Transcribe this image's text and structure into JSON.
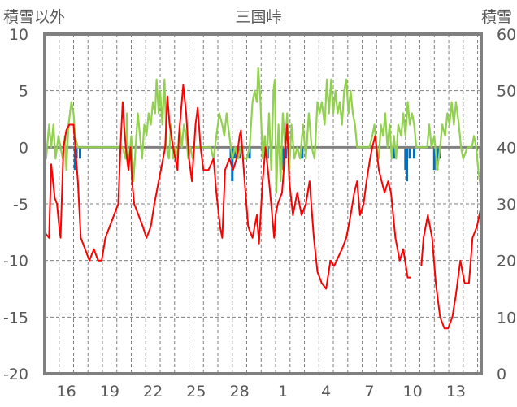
{
  "chart_data": {
    "type": "line",
    "title": "三国峠",
    "ylabel_left": "積雪以外",
    "ylabel_right": "積雪",
    "ylim_left": [
      -20,
      10
    ],
    "ylim_right": [
      0,
      60
    ],
    "yticks_left": [
      "10",
      "5",
      "0",
      "-5",
      "-10",
      "-15",
      "-20"
    ],
    "yticks_right": [
      "60",
      "50",
      "40",
      "30",
      "20",
      "10",
      "0"
    ],
    "xlim_days": [
      0,
      30.25
    ],
    "xtick_labels": [
      {
        "day": 1.5,
        "label": "16"
      },
      {
        "day": 4.5,
        "label": "19"
      },
      {
        "day": 7.5,
        "label": "22"
      },
      {
        "day": 10.5,
        "label": "25"
      },
      {
        "day": 13.5,
        "label": "28"
      },
      {
        "day": 16.5,
        "label": "1"
      },
      {
        "day": 19.5,
        "label": "4"
      },
      {
        "day": 22.5,
        "label": "7"
      },
      {
        "day": 25.5,
        "label": "10"
      },
      {
        "day": 28.5,
        "label": "13"
      }
    ],
    "colors": {
      "red": "#ff0000",
      "green": "#92d050",
      "blue": "#0070c0",
      "axis": "#808080"
    },
    "series": [
      {
        "name": "red",
        "axis": "left",
        "color": "#ff0000",
        "points": [
          [
            0,
            -7.5
          ],
          [
            0.3,
            -8
          ],
          [
            0.45,
            -1.5
          ],
          [
            0.7,
            -4.5
          ],
          [
            0.85,
            -5
          ],
          [
            1.0,
            -7
          ],
          [
            1.1,
            -8
          ],
          [
            1.3,
            0
          ],
          [
            1.5,
            1.5
          ],
          [
            1.7,
            2
          ],
          [
            2.0,
            2
          ],
          [
            2.3,
            -3
          ],
          [
            2.5,
            -8
          ],
          [
            2.8,
            -9
          ],
          [
            3.1,
            -10
          ],
          [
            3.4,
            -9
          ],
          [
            3.7,
            -10
          ],
          [
            3.95,
            -10
          ],
          [
            4.2,
            -8
          ],
          [
            4.5,
            -7
          ],
          [
            4.8,
            -6
          ],
          [
            5.1,
            -5
          ],
          [
            5.25,
            0
          ],
          [
            5.4,
            4
          ],
          [
            5.55,
            1
          ],
          [
            5.7,
            -1
          ],
          [
            5.8,
            -2
          ],
          [
            5.95,
            0
          ],
          [
            6.05,
            -3
          ],
          [
            6.2,
            -5
          ],
          [
            6.5,
            -6
          ],
          [
            6.8,
            -7
          ],
          [
            7.05,
            -8
          ],
          [
            7.35,
            -7
          ],
          [
            7.6,
            -5
          ],
          [
            7.9,
            -3
          ],
          [
            8.2,
            -1
          ],
          [
            8.35,
            0
          ],
          [
            8.5,
            4.5
          ],
          [
            8.65,
            2
          ],
          [
            8.9,
            0
          ],
          [
            9.2,
            -2
          ],
          [
            9.3,
            1
          ],
          [
            9.6,
            5.5
          ],
          [
            9.8,
            3
          ],
          [
            10.0,
            -1
          ],
          [
            10.2,
            -3
          ],
          [
            10.45,
            2
          ],
          [
            10.6,
            3.5
          ],
          [
            10.8,
            0
          ],
          [
            11.0,
            -2
          ],
          [
            11.35,
            -2
          ],
          [
            11.7,
            -1
          ],
          [
            11.9,
            -4
          ],
          [
            12.15,
            -7
          ],
          [
            12.3,
            -8
          ],
          [
            12.5,
            -2
          ],
          [
            12.8,
            -1
          ],
          [
            13.05,
            -2
          ],
          [
            13.3,
            -1
          ],
          [
            13.5,
            1
          ],
          [
            13.6,
            1.5
          ],
          [
            13.85,
            -3
          ],
          [
            14.1,
            -7
          ],
          [
            14.4,
            -8
          ],
          [
            14.7,
            -6
          ],
          [
            14.85,
            -8.5
          ],
          [
            15.1,
            -3
          ],
          [
            15.3,
            0
          ],
          [
            15.55,
            -3
          ],
          [
            15.9,
            -8
          ],
          [
            16.0,
            -6
          ],
          [
            16.15,
            -5
          ],
          [
            16.45,
            -4
          ],
          [
            16.65,
            -0.5
          ],
          [
            16.8,
            2
          ],
          [
            16.95,
            -3
          ],
          [
            17.2,
            -6
          ],
          [
            17.5,
            -4
          ],
          [
            17.8,
            -6
          ],
          [
            18.1,
            -5
          ],
          [
            18.35,
            -3
          ],
          [
            18.65,
            -8
          ],
          [
            18.9,
            -11
          ],
          [
            19.2,
            -12
          ],
          [
            19.5,
            -12.5
          ],
          [
            19.8,
            -10
          ],
          [
            20.05,
            -10.5
          ],
          [
            20.6,
            -9
          ],
          [
            20.9,
            -8
          ],
          [
            21.2,
            -6
          ],
          [
            21.45,
            -4
          ],
          [
            21.65,
            -3
          ],
          [
            21.85,
            -6
          ],
          [
            22.1,
            -5
          ],
          [
            22.3,
            -3
          ],
          [
            22.55,
            -1
          ],
          [
            22.7,
            0
          ],
          [
            22.9,
            1
          ],
          [
            23.15,
            -2
          ],
          [
            23.35,
            -3
          ],
          [
            23.55,
            -4
          ],
          [
            23.8,
            -3
          ],
          [
            24.0,
            -4
          ],
          [
            24.3,
            -8
          ],
          [
            24.6,
            -10
          ],
          [
            24.85,
            -9
          ],
          [
            25.15,
            -11.5
          ],
          [
            25.4,
            -11.5
          ],
          null,
          [
            26.1,
            -10.5
          ],
          [
            26.25,
            -8
          ],
          [
            26.55,
            -6
          ],
          [
            26.85,
            -8
          ],
          [
            27.1,
            -12
          ],
          [
            27.4,
            -15
          ],
          [
            27.7,
            -16
          ],
          [
            27.95,
            -16
          ],
          [
            28.25,
            -15
          ],
          [
            28.5,
            -13
          ],
          [
            28.8,
            -10
          ],
          [
            29.1,
            -12
          ],
          [
            29.4,
            -12
          ],
          [
            29.65,
            -8
          ],
          [
            29.95,
            -7
          ],
          [
            30.2,
            -5.5
          ]
        ]
      },
      {
        "name": "green",
        "axis": "left",
        "color": "#92d050",
        "points": [
          [
            0,
            0
          ],
          [
            0.1,
            -1
          ],
          [
            0.3,
            2
          ],
          [
            0.45,
            0
          ],
          [
            0.6,
            2
          ],
          [
            0.75,
            -1
          ],
          [
            0.95,
            1
          ],
          [
            1.1,
            0
          ],
          [
            1.25,
            -1
          ],
          [
            1.4,
            1
          ],
          [
            1.5,
            -2
          ],
          [
            1.65,
            2
          ],
          [
            1.85,
            4
          ],
          [
            2.0,
            3
          ],
          [
            2.1,
            1
          ],
          [
            2.3,
            0
          ],
          [
            5.4,
            0
          ],
          [
            5.6,
            -1
          ],
          [
            5.7,
            3
          ],
          [
            5.8,
            -2
          ],
          [
            6.0,
            1
          ],
          [
            6.15,
            -3
          ],
          [
            6.3,
            0
          ],
          [
            6.45,
            3
          ],
          [
            6.6,
            1
          ],
          [
            6.75,
            -1
          ],
          [
            6.9,
            2
          ],
          [
            7.05,
            1
          ],
          [
            7.2,
            3
          ],
          [
            7.35,
            2
          ],
          [
            7.5,
            4
          ],
          [
            7.65,
            3
          ],
          [
            7.75,
            6
          ],
          [
            7.9,
            3
          ],
          [
            8.0,
            5
          ],
          [
            8.15,
            2
          ],
          [
            8.3,
            6
          ],
          [
            8.45,
            0
          ],
          [
            8.6,
            -1
          ],
          [
            8.75,
            2
          ],
          [
            8.9,
            -1
          ],
          [
            9.05,
            0
          ],
          [
            9.2,
            -1
          ],
          [
            9.35,
            2
          ],
          [
            9.5,
            0
          ],
          [
            9.65,
            2
          ],
          [
            9.8,
            1
          ],
          [
            9.95,
            -1
          ],
          [
            10.1,
            0
          ],
          [
            10.25,
            -1
          ],
          [
            10.4,
            0
          ],
          [
            10.6,
            0
          ],
          [
            10.8,
            0
          ],
          [
            11.2,
            0
          ],
          [
            11.5,
            0
          ],
          [
            11.7,
            -1
          ],
          [
            11.9,
            1
          ],
          [
            12.1,
            3
          ],
          [
            12.3,
            2
          ],
          [
            12.45,
            1
          ],
          [
            12.6,
            3
          ],
          [
            12.8,
            1
          ],
          [
            13.0,
            -1
          ],
          [
            13.2,
            0
          ],
          [
            13.4,
            -1
          ],
          [
            13.6,
            0
          ],
          [
            13.8,
            -1
          ],
          [
            14.0,
            -1
          ],
          [
            14.2,
            0
          ],
          [
            14.4,
            4
          ],
          [
            14.55,
            5
          ],
          [
            14.7,
            4
          ],
          [
            14.8,
            7
          ],
          [
            14.95,
            4
          ],
          [
            15.1,
            -1
          ],
          [
            15.25,
            1
          ],
          [
            15.4,
            -1
          ],
          [
            15.55,
            3
          ],
          [
            15.7,
            -2
          ],
          [
            15.85,
            5
          ],
          [
            15.95,
            6
          ],
          [
            16.05,
            -4
          ],
          [
            16.2,
            2
          ],
          [
            16.35,
            -3
          ],
          [
            16.5,
            3
          ],
          [
            16.65,
            0
          ],
          [
            16.8,
            3
          ],
          [
            16.95,
            -2
          ],
          [
            17.1,
            2
          ],
          [
            17.3,
            -1
          ],
          [
            17.5,
            0
          ],
          [
            17.7,
            -1
          ],
          [
            17.9,
            2
          ],
          [
            18.1,
            -1
          ],
          [
            18.3,
            3
          ],
          [
            18.5,
            0
          ],
          [
            18.7,
            -1
          ],
          [
            18.9,
            4
          ],
          [
            19.05,
            3
          ],
          [
            19.2,
            4
          ],
          [
            19.4,
            2
          ],
          [
            19.55,
            6
          ],
          [
            19.7,
            3
          ],
          [
            19.85,
            6
          ],
          [
            20.0,
            3
          ],
          [
            20.15,
            5
          ],
          [
            20.3,
            3
          ],
          [
            20.45,
            4
          ],
          [
            20.6,
            2
          ],
          [
            20.75,
            5
          ],
          [
            20.9,
            6
          ],
          [
            21.05,
            3
          ],
          [
            21.2,
            5
          ],
          [
            21.35,
            3
          ],
          [
            21.5,
            2
          ],
          [
            21.65,
            0
          ],
          [
            21.8,
            0
          ],
          [
            22.5,
            0
          ],
          [
            22.7,
            1
          ],
          [
            22.85,
            2
          ],
          [
            23.0,
            0
          ],
          [
            23.15,
            -1
          ],
          [
            23.3,
            2
          ],
          [
            23.45,
            1
          ],
          [
            23.6,
            3
          ],
          [
            23.75,
            0
          ],
          [
            23.9,
            2
          ],
          [
            24.05,
            -1
          ],
          [
            24.2,
            1
          ],
          [
            24.35,
            -1
          ],
          [
            24.5,
            2
          ],
          [
            24.7,
            1
          ],
          [
            24.85,
            3
          ],
          [
            25.0,
            1
          ],
          [
            25.15,
            4
          ],
          [
            25.3,
            2
          ],
          [
            25.45,
            3
          ],
          [
            25.6,
            2
          ],
          [
            25.75,
            0
          ],
          [
            26.5,
            0
          ],
          [
            26.65,
            2
          ],
          [
            26.8,
            0
          ],
          [
            27.0,
            1
          ],
          [
            27.2,
            -2
          ],
          [
            27.4,
            0
          ],
          [
            27.55,
            2
          ],
          [
            27.75,
            1
          ],
          [
            27.9,
            3
          ],
          [
            28.05,
            2
          ],
          [
            28.2,
            4
          ],
          [
            28.35,
            2
          ],
          [
            28.5,
            4
          ],
          [
            28.7,
            2
          ],
          [
            28.85,
            0
          ],
          [
            29.0,
            -1
          ],
          [
            29.3,
            0
          ],
          [
            29.6,
            0
          ],
          [
            29.75,
            1
          ],
          [
            29.9,
            0
          ],
          [
            30.05,
            -2
          ],
          [
            30.25,
            -4
          ]
        ]
      },
      {
        "name": "blue",
        "axis": "left",
        "type": "bar",
        "color": "#0070c0",
        "points": [
          [
            2.1,
            -2
          ],
          [
            2.2,
            -1
          ],
          [
            2.45,
            -1
          ],
          [
            12.9,
            -1
          ],
          [
            13.0,
            -3
          ],
          [
            13.15,
            -1
          ],
          [
            13.3,
            -1
          ],
          [
            13.5,
            -1
          ],
          [
            14.2,
            -1
          ],
          [
            15.45,
            -1
          ],
          [
            16.55,
            -2
          ],
          [
            16.7,
            -1
          ],
          [
            17.85,
            -1
          ],
          [
            24.2,
            -1
          ],
          [
            24.3,
            -1
          ],
          [
            25.0,
            -2
          ],
          [
            25.1,
            -3
          ],
          [
            25.3,
            -1
          ],
          [
            25.6,
            -1
          ],
          [
            27.0,
            -2
          ],
          [
            27.2,
            -2
          ],
          [
            27.35,
            -1
          ],
          [
            30.2,
            -1
          ]
        ]
      }
    ]
  }
}
